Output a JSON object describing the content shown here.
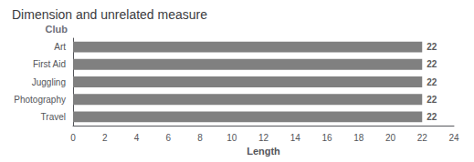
{
  "chart_data": {
    "type": "bar",
    "orientation": "horizontal",
    "title": "Dimension and unrelated measure",
    "categories": [
      "Art",
      "First Aid",
      "Juggling",
      "Photography",
      "Travel"
    ],
    "values": [
      22,
      22,
      22,
      22,
      22
    ],
    "color": "#808080",
    "xlabel": "Length",
    "ylabel": "Club",
    "xlim": [
      0,
      24
    ],
    "xticks": [
      0,
      2,
      4,
      6,
      8,
      10,
      12,
      14,
      16,
      18,
      20,
      22,
      24
    ],
    "grid": false,
    "data_labels": true
  }
}
